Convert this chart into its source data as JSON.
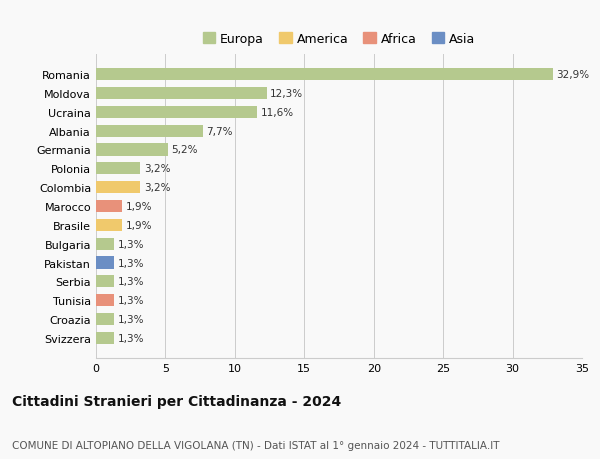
{
  "countries": [
    "Romania",
    "Moldova",
    "Ucraina",
    "Albania",
    "Germania",
    "Polonia",
    "Colombia",
    "Marocco",
    "Brasile",
    "Bulgaria",
    "Pakistan",
    "Serbia",
    "Tunisia",
    "Croazia",
    "Svizzera"
  ],
  "values": [
    32.9,
    12.3,
    11.6,
    7.7,
    5.2,
    3.2,
    3.2,
    1.9,
    1.9,
    1.3,
    1.3,
    1.3,
    1.3,
    1.3,
    1.3
  ],
  "labels": [
    "32,9%",
    "12,3%",
    "11,6%",
    "7,7%",
    "5,2%",
    "3,2%",
    "3,2%",
    "1,9%",
    "1,9%",
    "1,3%",
    "1,3%",
    "1,3%",
    "1,3%",
    "1,3%",
    "1,3%"
  ],
  "continents": [
    "Europa",
    "Europa",
    "Europa",
    "Europa",
    "Europa",
    "Europa",
    "America",
    "Africa",
    "America",
    "Europa",
    "Asia",
    "Europa",
    "Africa",
    "Europa",
    "Europa"
  ],
  "continent_colors": {
    "Europa": "#b5c98e",
    "America": "#f0c96c",
    "Africa": "#e8917a",
    "Asia": "#6b8ec4"
  },
  "legend_order": [
    "Europa",
    "America",
    "Africa",
    "Asia"
  ],
  "title": "Cittadini Stranieri per Cittadinanza - 2024",
  "subtitle": "COMUNE DI ALTOPIANO DELLA VIGOLANA (TN) - Dati ISTAT al 1° gennaio 2024 - TUTTITALIA.IT",
  "xlim": [
    0,
    35
  ],
  "xticks": [
    0,
    5,
    10,
    15,
    20,
    25,
    30,
    35
  ],
  "background_color": "#f9f9f9",
  "grid_color": "#cccccc",
  "bar_height": 0.65,
  "title_fontsize": 10,
  "subtitle_fontsize": 7.5,
  "label_fontsize": 7.5,
  "tick_fontsize": 8,
  "legend_fontsize": 9
}
